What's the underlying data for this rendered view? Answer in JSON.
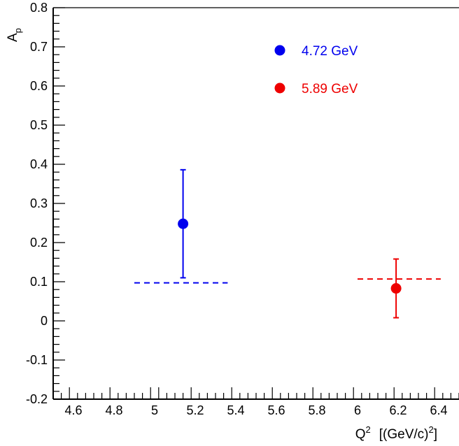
{
  "chart_data": {
    "type": "scatter",
    "title": "",
    "xlabel": "Q",
    "xlabel_sup": "2",
    "xlabel_unit": "[(GeV/c)",
    "xlabel_unit_sup": "2",
    "xlabel_unit_close": "]",
    "ylabel": "A",
    "ylabel_sub": "p",
    "xlim": [
      4.5,
      6.5
    ],
    "ylim": [
      -0.2,
      0.8
    ],
    "xticks": [
      4.6,
      4.8,
      5,
      5.2,
      5.4,
      5.6,
      5.8,
      6,
      6.2,
      6.4
    ],
    "xtick_labels": [
      "4.6",
      "4.8",
      "5",
      "5.2",
      "5.4",
      "5.6",
      "5.8",
      "6",
      "6.2",
      "6.4"
    ],
    "yticks": [
      -0.2,
      -0.1,
      0,
      0.1,
      0.2,
      0.3,
      0.4,
      0.5,
      0.6,
      0.7,
      0.8
    ],
    "ytick_labels": [
      "-0.2",
      "-0.1",
      "0",
      "0.1",
      "0.2",
      "0.3",
      "0.4",
      "0.5",
      "0.6",
      "0.7",
      "0.8"
    ],
    "grid": false,
    "legend_position": "top-right",
    "series": [
      {
        "name": "4.72 GeV",
        "color": "#0000ee",
        "points": [
          {
            "x": 5.14,
            "y": 0.248,
            "yerr_low": 0.138,
            "yerr_high": 0.138
          }
        ],
        "reference_line": {
          "x_start": 4.9,
          "x_end": 5.36,
          "y": 0.097
        }
      },
      {
        "name": "5.89 GeV",
        "color": "#ee0000",
        "points": [
          {
            "x": 6.19,
            "y": 0.083,
            "yerr_low": 0.075,
            "yerr_high": 0.075
          }
        ],
        "reference_line": {
          "x_start": 6.0,
          "x_end": 6.41,
          "y": 0.107
        }
      }
    ]
  }
}
